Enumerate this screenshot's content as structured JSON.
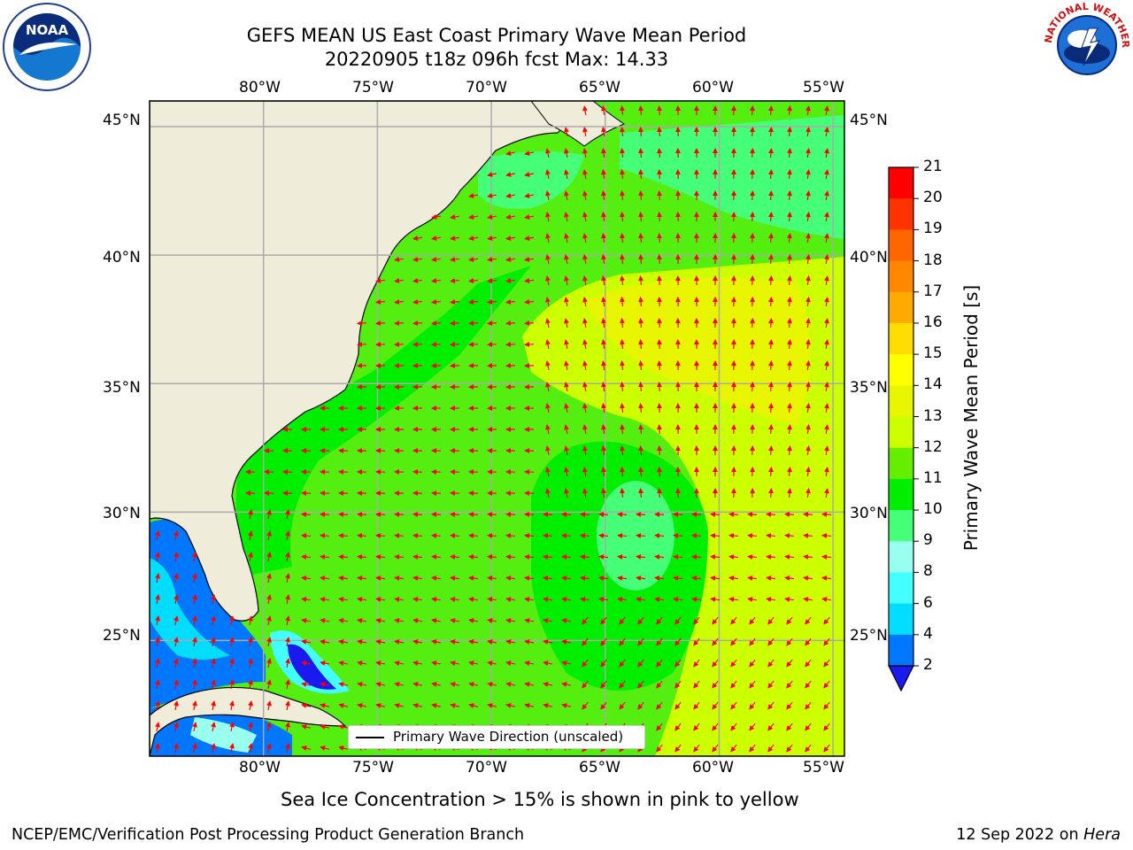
{
  "header": {
    "title_line1": "GEFS MEAN US East Coast Primary Wave Mean Period",
    "title_line2": "20220905 t18z 096h fcst   Max: 14.33"
  },
  "logos": {
    "left": "NOAA",
    "left_ring": "NATIONAL OCEANIC AND ATMOSPHERIC ADMINISTRATION · U.S. DEPARTMENT OF COMMERCE",
    "right_ring": "NATIONAL WEATHER SERVICE"
  },
  "map": {
    "lon_labels": [
      "80°W",
      "75°W",
      "70°W",
      "65°W",
      "60°W",
      "55°W"
    ],
    "lat_labels": [
      "45°N",
      "40°N",
      "35°N",
      "30°N",
      "25°N"
    ],
    "lon_range": [
      -85,
      -54.5
    ],
    "lat_range": [
      20.5,
      46
    ],
    "arrow_color": "#ff0000",
    "land_color": "#efedda",
    "legend_text": "Primary Wave Direction (unscaled)"
  },
  "colorbar": {
    "label": "Primary Wave Mean Period [s]",
    "ticks": [
      "21",
      "20",
      "19",
      "18",
      "17",
      "16",
      "15",
      "14",
      "13",
      "12",
      "11",
      "10",
      "9",
      "8",
      "6",
      "4",
      "2"
    ],
    "colors": [
      "#ff0000",
      "#ff3300",
      "#ff6600",
      "#ff8800",
      "#ffaa00",
      "#ffdd00",
      "#ffff00",
      "#e8f500",
      "#ccff00",
      "#66ee00",
      "#00ee00",
      "#44ff77",
      "#99ffee",
      "#44ffff",
      "#00ddff",
      "#0077ff"
    ],
    "extend_color": "#1a1aee"
  },
  "footer": {
    "note": "Sea Ice Concentration > 15% is shown in pink to yellow",
    "left": "NCEP/EMC/Verification Post Processing Product Generation Branch",
    "date": "12 Sep 2022 on",
    "machine": "Hera"
  }
}
